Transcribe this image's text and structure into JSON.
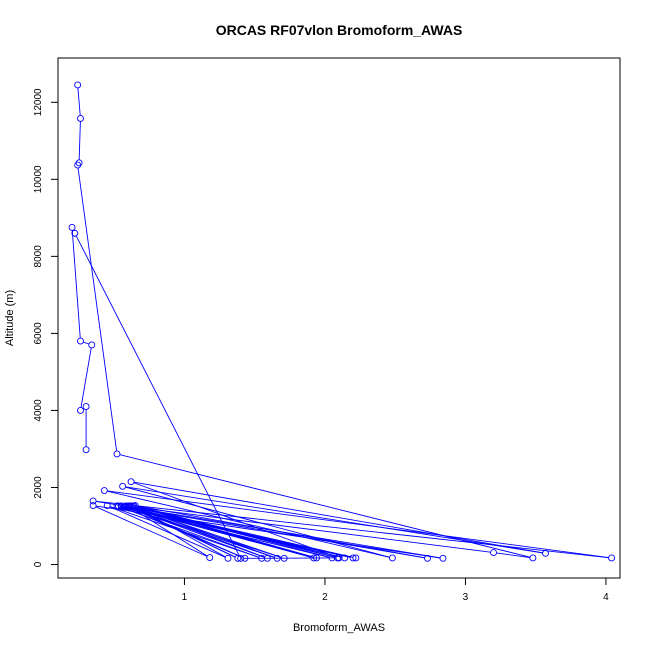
{
  "chart_data": {
    "type": "line",
    "title": "ORCAS RF07vlon Bromoform_AWAS",
    "xlabel": "Bromoform_AWAS",
    "ylabel": "Altitude (m)",
    "xlim": [
      0.1,
      4.1
    ],
    "ylim": [
      -350,
      13150
    ],
    "xticks": [
      1,
      2,
      3,
      4
    ],
    "yticks": [
      0,
      2000,
      4000,
      6000,
      8000,
      10000,
      12000
    ],
    "grid": false,
    "series_color": "#0000ff",
    "points": [
      [
        0.24,
        12450
      ],
      [
        0.26,
        11580
      ],
      [
        0.25,
        10430
      ],
      [
        0.24,
        10370
      ],
      [
        0.52,
        2870
      ],
      [
        3.48,
        170
      ],
      [
        3.2,
        310
      ],
      [
        0.58,
        1520
      ],
      [
        1.43,
        160
      ],
      [
        0.55,
        1520
      ],
      [
        2.14,
        170
      ],
      [
        0.63,
        1520
      ],
      [
        2.05,
        170
      ],
      [
        0.52,
        1520
      ],
      [
        1.55,
        160
      ],
      [
        0.45,
        1530
      ],
      [
        1.31,
        160
      ],
      [
        0.64,
        1520
      ],
      [
        1.94,
        170
      ],
      [
        0.6,
        1520
      ],
      [
        1.38,
        160
      ],
      [
        0.61,
        1500
      ],
      [
        1.92,
        170
      ],
      [
        0.57,
        1500
      ],
      [
        1.66,
        160
      ],
      [
        0.62,
        1520
      ],
      [
        2.09,
        170
      ],
      [
        0.65,
        1530
      ],
      [
        2.73,
        160
      ],
      [
        0.58,
        1500
      ],
      [
        1.59,
        160
      ],
      [
        0.61,
        1520
      ],
      [
        1.71,
        160
      ],
      [
        0.55,
        1520
      ],
      [
        2.2,
        170
      ],
      [
        0.53,
        1520
      ],
      [
        2.22,
        170
      ],
      [
        0.6,
        1520
      ],
      [
        1.18,
        180
      ],
      [
        0.35,
        1530
      ],
      [
        2.84,
        160
      ],
      [
        0.35,
        1650
      ],
      [
        4.04,
        170
      ],
      [
        0.43,
        1920
      ],
      [
        2.48,
        170
      ],
      [
        0.56,
        2030
      ],
      [
        3.57,
        290
      ],
      [
        0.62,
        2150
      ],
      [
        2.1,
        170
      ],
      [
        1.4,
        160
      ],
      [
        0.22,
        8600
      ],
      [
        0.2,
        8750
      ],
      [
        0.26,
        5800
      ],
      [
        0.34,
        5700
      ],
      [
        0.26,
        4000
      ],
      [
        0.3,
        4100
      ],
      [
        0.3,
        2980
      ]
    ]
  }
}
